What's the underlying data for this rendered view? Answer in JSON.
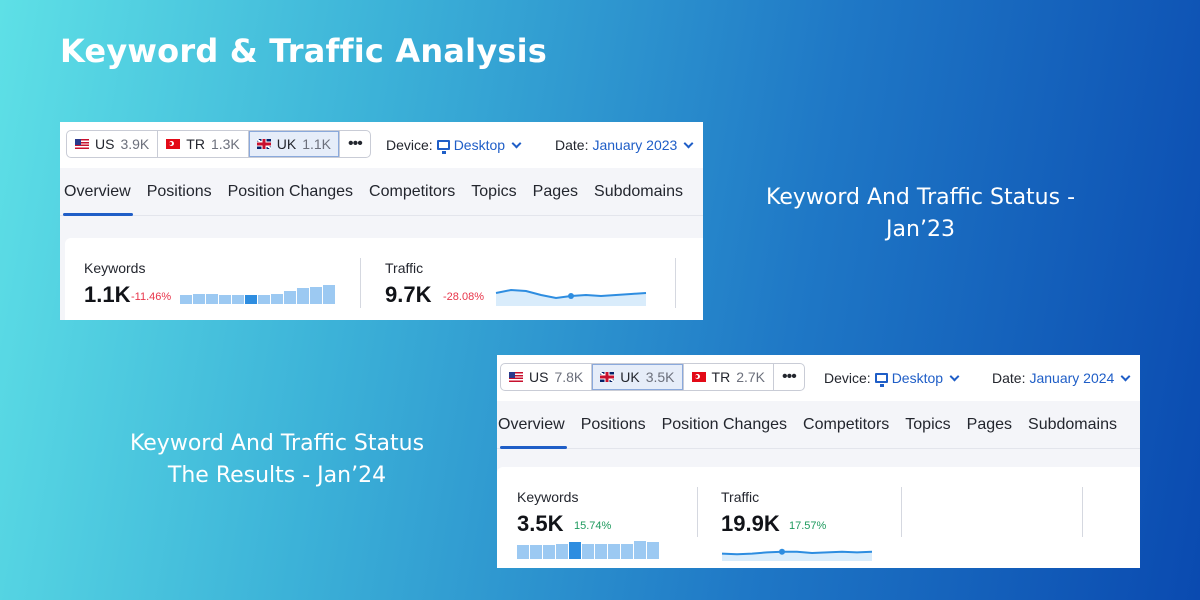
{
  "page": {
    "title": "Keyword & Traffic Analysis",
    "caption_jan23": [
      "Keyword And Traffic Status -",
      "Jan’23"
    ],
    "caption_jan24": [
      "Keyword And Traffic Status",
      "The Results - Jan’24"
    ]
  },
  "colors": {
    "accent": "#1f5ec7",
    "negative": "#e8354a",
    "positive": "#1e9a5e",
    "spark_bar": "#9cc9f2",
    "spark_line": "#2e8de0"
  },
  "jan23": {
    "databases": [
      {
        "flag": "us-flag-icon",
        "code": "US",
        "count": "3.9K",
        "active": false
      },
      {
        "flag": "tr-flag-icon",
        "code": "TR",
        "count": "1.3K",
        "active": false
      },
      {
        "flag": "uk-flag-icon",
        "code": "UK",
        "count": "1.1K",
        "active": true
      }
    ],
    "more": "•••",
    "device_label": "Device:",
    "device_value": "Desktop",
    "date_label": "Date:",
    "date_value": "January 2023",
    "tabs": [
      "Overview",
      "Positions",
      "Position Changes",
      "Competitors",
      "Topics",
      "Pages",
      "Subdomains"
    ],
    "keywords": {
      "label": "Keywords",
      "value": "1.1K",
      "delta": "-11.46%",
      "bars": [
        0.45,
        0.55,
        0.55,
        0.45,
        0.45,
        0.45,
        0.45,
        0.5,
        0.7,
        0.85,
        0.9,
        1.0
      ],
      "highlight": 5
    },
    "traffic": {
      "label": "Traffic",
      "value": "9.7K",
      "delta": "-28.08%",
      "line": [
        0.55,
        0.7,
        0.65,
        0.45,
        0.3,
        0.4,
        0.45,
        0.4,
        0.45,
        0.5,
        0.55
      ],
      "marker": 5
    }
  },
  "jan24": {
    "databases": [
      {
        "flag": "us-flag-icon",
        "code": "US",
        "count": "7.8K",
        "active": false
      },
      {
        "flag": "uk-flag-icon",
        "code": "UK",
        "count": "3.5K",
        "active": true
      },
      {
        "flag": "tr-flag-icon",
        "code": "TR",
        "count": "2.7K",
        "active": false
      }
    ],
    "more": "•••",
    "device_label": "Device:",
    "device_value": "Desktop",
    "date_label": "Date:",
    "date_value": "January 2024",
    "tabs": [
      "Overview",
      "Positions",
      "Position Changes",
      "Competitors",
      "Topics",
      "Pages",
      "Subdomains"
    ],
    "keywords": {
      "label": "Keywords",
      "value": "3.5K",
      "delta": "15.74%",
      "bars": [
        0.8,
        0.8,
        0.8,
        0.85,
        1.0,
        0.85,
        0.85,
        0.85,
        0.9,
        1.05,
        1.0
      ],
      "highlight": 4
    },
    "traffic": {
      "label": "Traffic",
      "value": "19.9K",
      "delta": "17.57%",
      "line": [
        0.45,
        0.4,
        0.45,
        0.55,
        0.6,
        0.6,
        0.5,
        0.55,
        0.6,
        0.55,
        0.6
      ],
      "marker": 4
    }
  }
}
